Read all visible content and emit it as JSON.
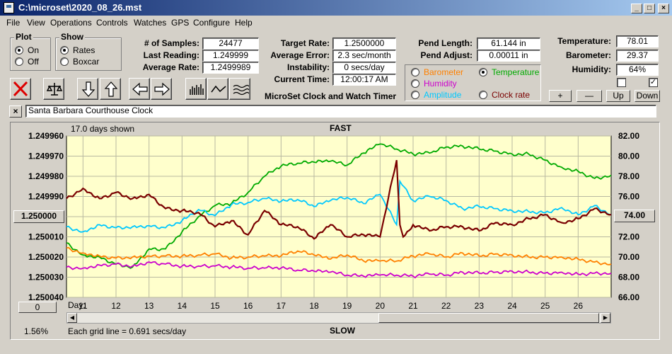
{
  "window": {
    "title": "C:\\microset\\2020_08_26.mst"
  },
  "menu": [
    "File",
    "View",
    "Operations",
    "Controls",
    "Watches",
    "GPS",
    "Configure",
    "Help"
  ],
  "plot_group": {
    "title": "Plot",
    "on": "On",
    "off": "Off",
    "selected": "On"
  },
  "show_group": {
    "title": "Show",
    "rates": "Rates",
    "boxcar": "Boxcar",
    "selected": "Rates"
  },
  "stats": {
    "samples_label": "# of Samples:",
    "samples": "24477",
    "last_label": "Last Reading:",
    "last": "1.249999",
    "avg_label": "Average Rate:",
    "avg": "1.2499989"
  },
  "rates": {
    "target_label": "Target Rate:",
    "target": "1.2500000",
    "error_label": "Average Error:",
    "error": "2.3 sec/month",
    "instab_label": "Instability:",
    "instab": "0 secs/day",
    "time_label": "Current Time:",
    "time": "12:00:17 AM"
  },
  "app_caption": "MicroSet Clock and Watch Timer",
  "pend": {
    "length_label": "Pend Length:",
    "length": "61.144 in",
    "adjust_label": "Pend Adjust:",
    "adjust": "0.00011 in"
  },
  "env_series": {
    "barometer": "Barometer",
    "temperature": "Temperature",
    "humidity": "Humidity",
    "amplitude": "Amplitude",
    "clock_rate": "Clock rate",
    "selected": "Temperature"
  },
  "env": {
    "temp_label": "Temperature:",
    "temp": "78.01",
    "baro_label": "Barometer:",
    "baro": "29.37",
    "hum_label": "Humidity:",
    "hum": "64%"
  },
  "env_buttons": {
    "plus": "+",
    "minus": "—",
    "up": "Up",
    "down": "Down"
  },
  "checks": {
    "left": false,
    "right": true
  },
  "clock_name": "Santa Barbara Courthouse Clock",
  "clear_button": "×",
  "colors": {
    "plot_bg": "#ffffcc",
    "barometer": "#ff8000",
    "temperature": "#00aa00",
    "humidity": "#cc00cc",
    "amplitude": "#00c8ff",
    "clock_rate": "#7a0000"
  },
  "chart_texts": {
    "days_shown": "17.0 days shown",
    "fast": "FAST",
    "slow": "SLOW",
    "grid_note": "Each grid line = 0.691 secs/day",
    "day_label": "Day:",
    "center_button": "1.250000",
    "zero_button": "0",
    "right_button": "74.00",
    "percent": "1.56%"
  },
  "chart_data": {
    "type": "line",
    "x_label": "Day",
    "x_range": [
      10.5,
      27.0
    ],
    "x_ticks": [
      11,
      12,
      13,
      14,
      15,
      16,
      17,
      18,
      19,
      20,
      21,
      22,
      23,
      24,
      25,
      26
    ],
    "y_left_ticks": [
      "1.249960",
      "1.249970",
      "1.249980",
      "1.249990",
      "1.250000",
      "1.250010",
      "1.250020",
      "1.250030",
      "1.250040"
    ],
    "y_left_range": [
      1.24996,
      1.25004
    ],
    "y_right_ticks": [
      "82.00",
      "80.00",
      "78.00",
      "76.00",
      "74.00",
      "72.00",
      "70.00",
      "68.00",
      "66.00"
    ],
    "y_right_range": [
      66,
      82
    ],
    "grid": true,
    "series": [
      {
        "name": "Temperature",
        "color": "#00aa00",
        "axis": "right",
        "x": [
          10.5,
          11,
          11.5,
          12,
          12.5,
          13,
          13.5,
          14,
          14.5,
          15,
          15.5,
          16,
          16.5,
          17,
          17.5,
          18,
          18.5,
          19,
          19.5,
          20,
          20.5,
          21,
          21.5,
          22,
          22.5,
          23,
          23.5,
          24,
          24.5,
          25,
          25.5,
          26,
          26.5,
          27
        ],
        "values": [
          71.4,
          70.2,
          70.0,
          69.3,
          69.0,
          70.8,
          70.8,
          72.5,
          74.0,
          75.1,
          75.3,
          76.4,
          78.0,
          79.0,
          79.3,
          79.4,
          79.5,
          79.1,
          80.3,
          81.2,
          80.7,
          80.2,
          80.3,
          80.9,
          81.0,
          80.7,
          80.5,
          80.2,
          80.2,
          79.6,
          78.9,
          78.5,
          77.8,
          78.1
        ]
      },
      {
        "name": "Barometer",
        "color": "#ff8000",
        "axis": "right",
        "x": [
          10.5,
          11,
          11.5,
          12,
          12.5,
          13,
          13.5,
          14,
          14.5,
          15,
          15.5,
          16,
          16.5,
          17,
          17.5,
          18,
          18.5,
          19,
          19.5,
          20,
          20.5,
          21,
          21.5,
          22,
          22.5,
          23,
          23.5,
          24,
          24.5,
          25,
          25.5,
          26,
          26.5,
          27
        ],
        "values": [
          70.9,
          70.4,
          70.1,
          69.9,
          70.0,
          70.1,
          70.1,
          70.1,
          70.2,
          70.3,
          69.9,
          70.0,
          70.1,
          70.1,
          70.6,
          70.2,
          69.8,
          70.2,
          69.6,
          69.6,
          69.6,
          70.1,
          70.3,
          70.0,
          70.4,
          70.1,
          70.3,
          70.2,
          70.0,
          70.0,
          70.0,
          69.8,
          69.5,
          69.3
        ]
      },
      {
        "name": "Humidity",
        "color": "#cc00cc",
        "axis": "right",
        "x": [
          10.5,
          11,
          11.5,
          12,
          12.5,
          13,
          13.5,
          14,
          14.5,
          15,
          15.5,
          16,
          16.5,
          17,
          17.5,
          18,
          18.5,
          19,
          19.5,
          20,
          20.5,
          21,
          21.5,
          22,
          22.5,
          23,
          23.5,
          24,
          24.5,
          25,
          25.5,
          26,
          26.5,
          27
        ],
        "values": [
          69.0,
          68.9,
          69.2,
          69.3,
          69.1,
          69.5,
          69.3,
          69.1,
          69.1,
          69.1,
          69.0,
          68.9,
          68.9,
          68.9,
          68.7,
          68.6,
          68.5,
          68.2,
          68.1,
          68.2,
          68.2,
          68.1,
          68.3,
          68.2,
          68.5,
          68.4,
          68.5,
          68.6,
          68.5,
          68.4,
          68.5,
          68.3,
          68.4,
          68.4
        ]
      },
      {
        "name": "Amplitude",
        "color": "#00c8ff",
        "axis": "right",
        "x": [
          10.5,
          11,
          11.5,
          12,
          12.5,
          13,
          13.5,
          14,
          14.5,
          15,
          15.5,
          16,
          16.5,
          17,
          17.5,
          18,
          18.5,
          19,
          19.5,
          20,
          20.5,
          20.6,
          21,
          21.5,
          22,
          22.5,
          23,
          23.5,
          24,
          24.5,
          25,
          25.5,
          26,
          26.5,
          27
        ],
        "values": [
          73.0,
          72.5,
          73.2,
          72.9,
          73.0,
          73.1,
          72.9,
          73.6,
          74.7,
          74.1,
          75.2,
          75.4,
          75.8,
          75.5,
          75.7,
          75.0,
          75.6,
          75.9,
          75.3,
          76.2,
          73.2,
          77.5,
          75.6,
          76.0,
          75.6,
          74.8,
          75.0,
          74.8,
          74.6,
          74.5,
          74.4,
          74.9,
          74.2,
          75.1,
          74.2
        ]
      },
      {
        "name": "Clock rate",
        "color": "#7a0000",
        "axis": "left",
        "x": [
          10.5,
          11,
          11.5,
          12,
          12.5,
          13,
          13.5,
          14,
          14.5,
          15,
          15.5,
          16,
          16.5,
          17,
          17.5,
          18,
          18.5,
          19,
          19.5,
          20,
          20.5,
          20.6,
          20.7,
          21,
          21.5,
          22,
          22.5,
          23,
          23.5,
          24,
          24.5,
          25,
          25.5,
          26,
          26.5,
          27
        ],
        "values": [
          1.249991,
          1.249986,
          1.249991,
          1.249988,
          1.249991,
          1.249989,
          1.249996,
          1.249997,
          1.249998,
          1.250005,
          1.250002,
          1.250009,
          1.249997,
          1.250004,
          1.250005,
          1.250011,
          1.250004,
          1.25001,
          1.250009,
          1.25001,
          1.249972,
          1.250004,
          1.25001,
          1.250004,
          1.250007,
          1.250005,
          1.250005,
          1.250007,
          1.250003,
          1.250004,
          1.250001,
          1.249999,
          1.250003,
          1.250001,
          1.249996,
          1.249999
        ]
      }
    ]
  }
}
